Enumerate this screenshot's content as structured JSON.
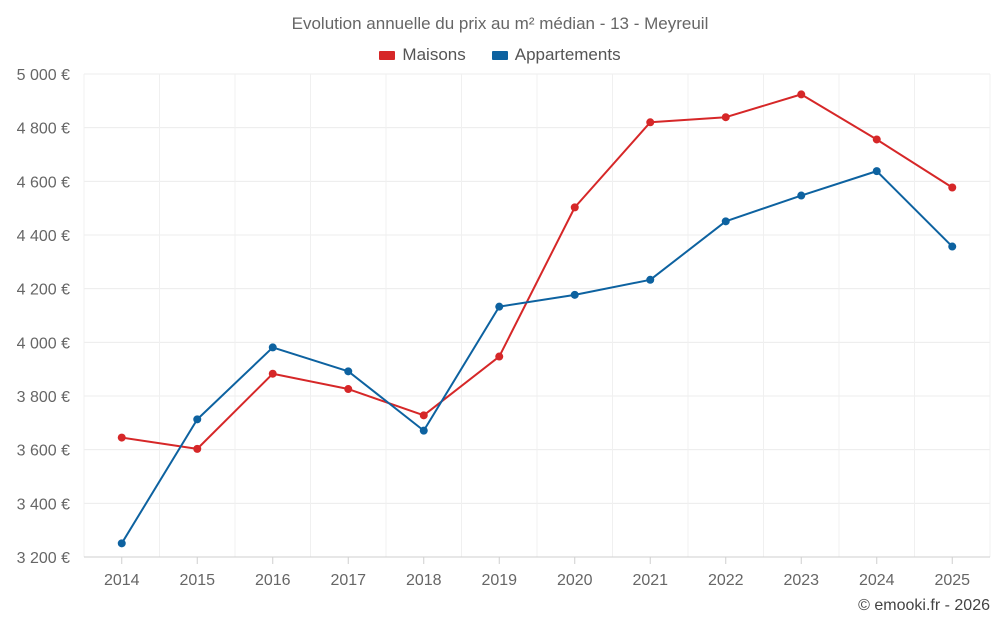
{
  "chart_data": {
    "type": "line",
    "title": "Evolution annuelle du prix au m² médian - 13 - Meyreuil",
    "categories": [
      "2014",
      "2015",
      "2016",
      "2017",
      "2018",
      "2019",
      "2020",
      "2021",
      "2022",
      "2023",
      "2024",
      "2025"
    ],
    "series": [
      {
        "name": "Maisons",
        "color": "#d62728",
        "values": [
          3645,
          3603,
          3883,
          3826,
          3728,
          3947,
          4503,
          4820,
          4839,
          4924,
          4756,
          4577
        ]
      },
      {
        "name": "Appartements",
        "color": "#0d62a0",
        "values": [
          3251,
          3713,
          3981,
          3892,
          3671,
          4133,
          4177,
          4233,
          4451,
          4547,
          4638,
          4357
        ]
      }
    ],
    "ylim": [
      3200,
      5000
    ],
    "yticks": [
      3200,
      3400,
      3600,
      3800,
      4000,
      4200,
      4400,
      4600,
      4800,
      5000
    ],
    "ytick_labels": [
      "3 200 €",
      "3 400 €",
      "3 600 €",
      "3 800 €",
      "4 000 €",
      "4 200 €",
      "4 400 €",
      "4 600 €",
      "4 800 €",
      "5 000 €"
    ],
    "xlabel": "",
    "ylabel": "",
    "grid": true,
    "legend_position": "top-center"
  },
  "credit": "© emooki.fr - 2026"
}
